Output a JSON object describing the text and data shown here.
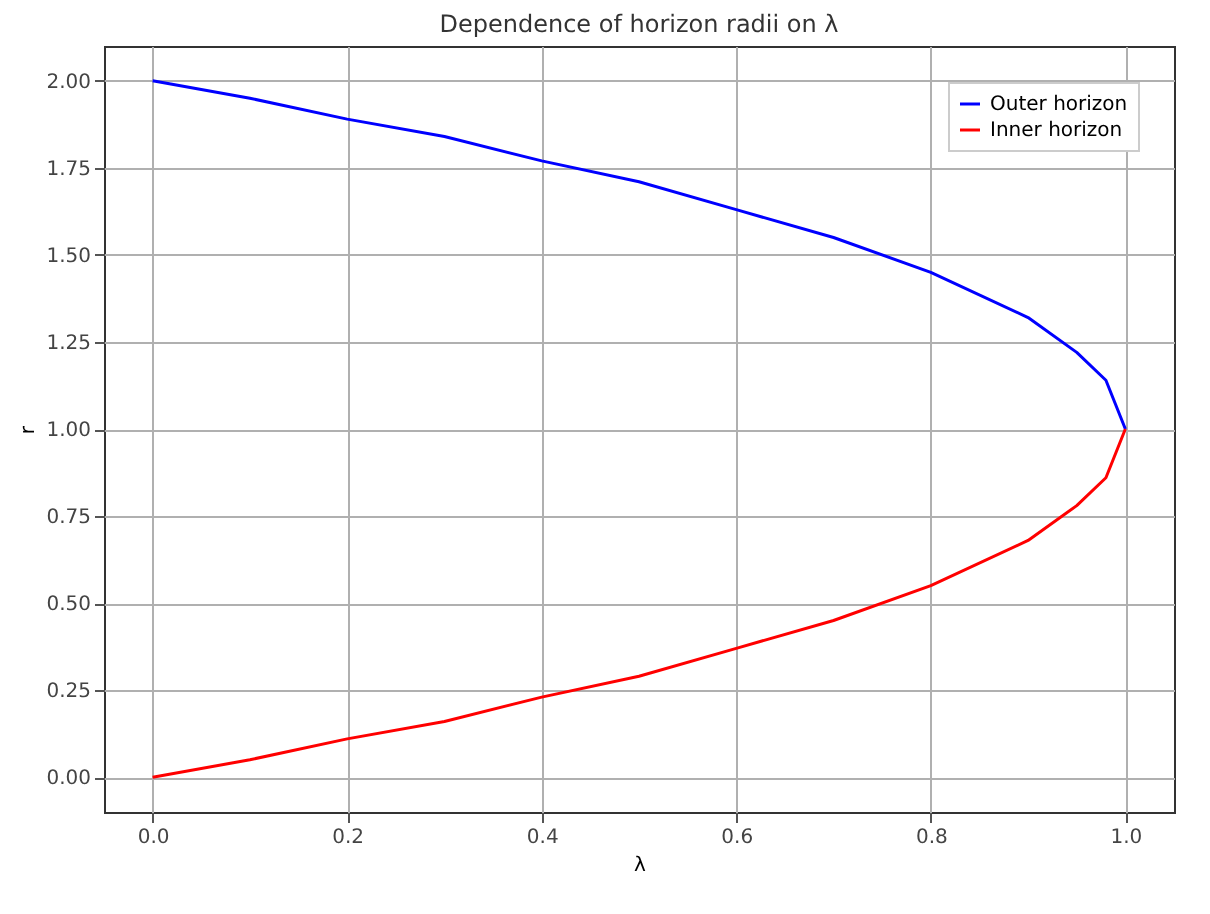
{
  "chart_data": {
    "type": "line",
    "title": "Dependence of horizon radii on λ",
    "xlabel": "λ",
    "ylabel": "r",
    "x": [
      0,
      0.1,
      0.2,
      0.3,
      0.4,
      0.5,
      0.6,
      0.7,
      0.8,
      0.9,
      0.95,
      0.98,
      1.0
    ],
    "series": [
      {
        "name": "Outer horizon",
        "color": "#0000ff",
        "values": [
          2.0,
          1.95,
          1.89,
          1.84,
          1.77,
          1.71,
          1.63,
          1.55,
          1.45,
          1.32,
          1.22,
          1.14,
          1.0
        ]
      },
      {
        "name": "Inner horizon",
        "color": "#ff0000",
        "values": [
          0.0,
          0.05,
          0.11,
          0.16,
          0.23,
          0.29,
          0.37,
          0.45,
          0.55,
          0.68,
          0.78,
          0.86,
          1.0
        ]
      }
    ],
    "xlim": [
      -0.05,
      1.05
    ],
    "xticks": [
      {
        "value": 0,
        "label": "0.0"
      },
      {
        "value": 0.2,
        "label": "0.2"
      },
      {
        "value": 0.4,
        "label": "0.4"
      },
      {
        "value": 0.6,
        "label": "0.6"
      },
      {
        "value": 0.8,
        "label": "0.8"
      },
      {
        "value": 1,
        "label": "1.0"
      }
    ],
    "ylim": [
      -0.1,
      2.1
    ],
    "yticks": [
      {
        "value": 0,
        "label": "0.00"
      },
      {
        "value": 0.25,
        "label": "0.25"
      },
      {
        "value": 0.5,
        "label": "0.50"
      },
      {
        "value": 0.75,
        "label": "0.75"
      },
      {
        "value": 1,
        "label": "1.00"
      },
      {
        "value": 1.25,
        "label": "1.25"
      },
      {
        "value": 1.5,
        "label": "1.50"
      },
      {
        "value": 1.75,
        "label": "1.75"
      },
      {
        "value": 2,
        "label": "2.00"
      }
    ],
    "grid": true,
    "legend": "top right"
  }
}
